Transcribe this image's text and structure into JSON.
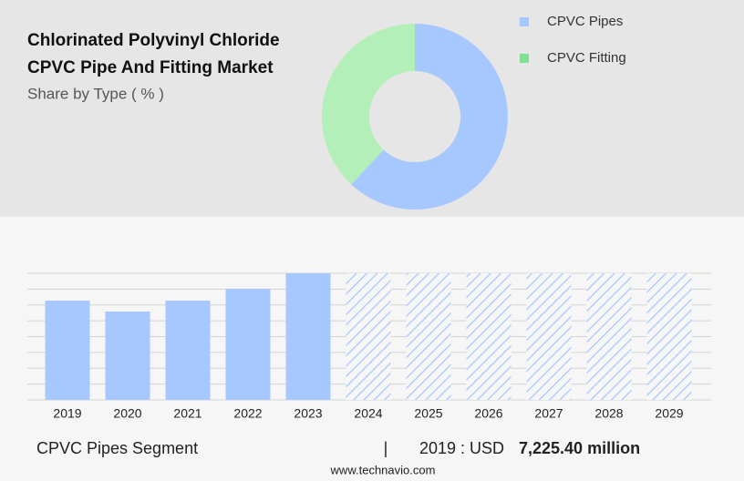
{
  "chart_data": [
    {
      "type": "pie",
      "title": [
        "Chlorinated Polyvinyl Chloride",
        "CPVC Pipe And Fitting Market"
      ],
      "subtitle": "Share by Type ( % )",
      "categories": [
        "CPVC Pipes",
        "CPVC Fitting"
      ],
      "values": [
        62,
        38
      ],
      "colors": [
        "#a7c7ff",
        "#b3efb8"
      ],
      "legend_colors": [
        "#a7c7ff",
        "#7fe08f"
      ],
      "donut": true
    },
    {
      "type": "bar",
      "categories": [
        "2019",
        "2020",
        "2021",
        "2022",
        "2023",
        "2024",
        "2025",
        "2026",
        "2027",
        "2028",
        "2029"
      ],
      "values": [
        7225.4,
        6430,
        7225,
        8090,
        9215,
        null,
        null,
        null,
        null,
        null,
        null
      ],
      "color": "#a7c7ff",
      "forecast_color": "#a7c7ff",
      "ylim": [
        0,
        9215
      ],
      "grid": true
    }
  ],
  "footer": {
    "segment": "CPVC Pipes Segment",
    "separator": "|",
    "year_label": "2019 : USD",
    "value": "7,225.40 million",
    "site": "www.technavio.com"
  }
}
